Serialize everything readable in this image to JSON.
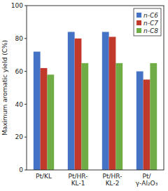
{
  "chart_data": {
    "type": "bar",
    "categories": [
      "Pt/KL",
      "Pt/HR-\nKL-1",
      "Pt/HR-\nKL-2",
      "Pt/\nγ-Al₂O₃"
    ],
    "series": [
      {
        "name": "n-C6",
        "color": "#4472C4",
        "values": [
          72,
          84,
          84,
          60
        ]
      },
      {
        "name": "n-C7",
        "color": "#C0392B",
        "values": [
          62,
          80,
          81,
          55
        ]
      },
      {
        "name": "n-C8",
        "color": "#70AD47",
        "values": [
          58,
          65,
          65,
          65
        ]
      }
    ],
    "ylabel": "Maximum aromatic yield (C%)",
    "ylim": [
      0,
      100
    ],
    "yticks": [
      0,
      20,
      40,
      60,
      80,
      100
    ],
    "grid": false,
    "legend": "upper right"
  }
}
